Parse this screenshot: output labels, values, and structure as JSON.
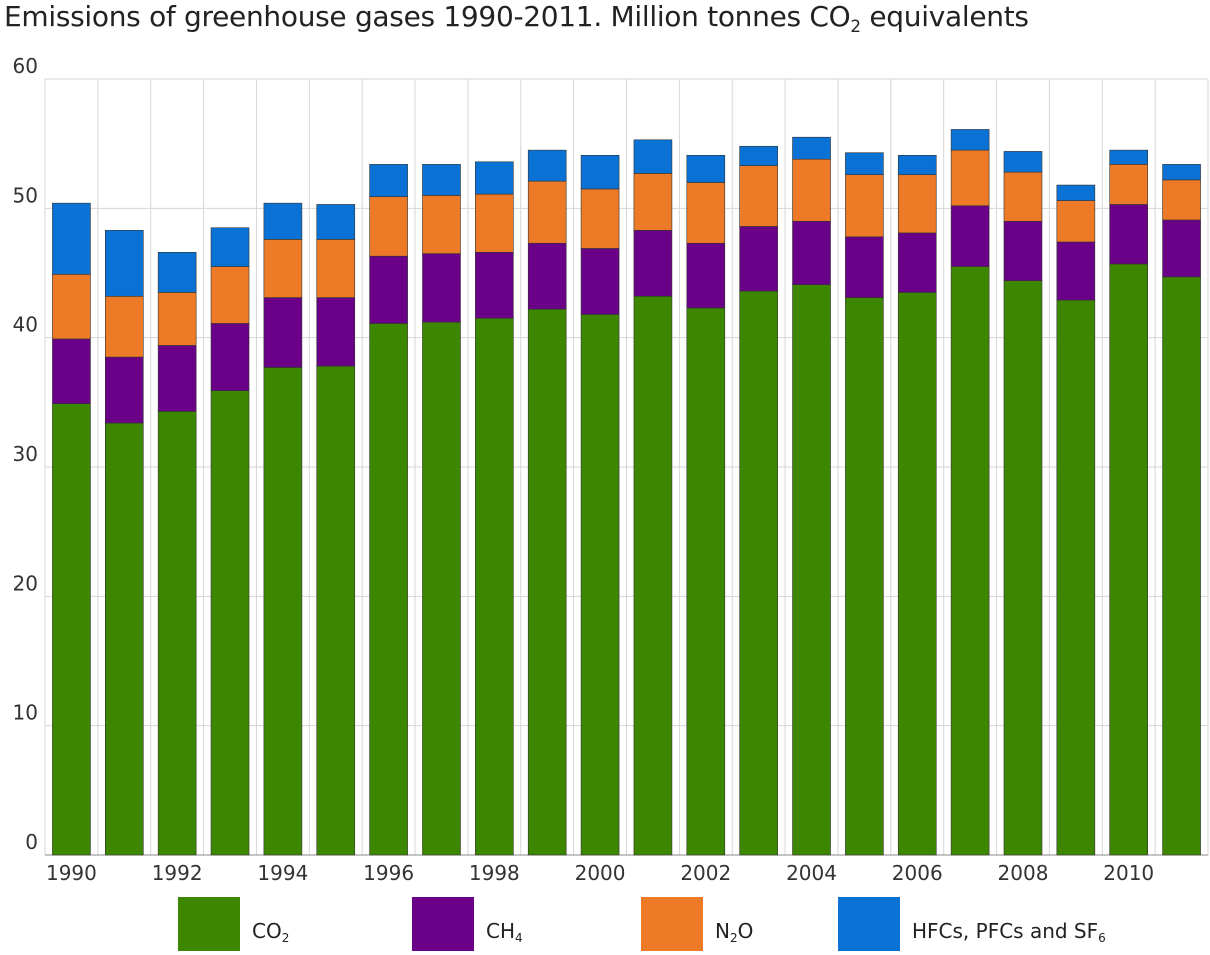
{
  "chart_data": {
    "type": "bar",
    "stacked": true,
    "title": {
      "main": "Emissions of greenhouse gases 1990-2011. Million tonnes CO",
      "sub": "2",
      "after": " equivalents"
    },
    "categories": [
      "1990",
      "1991",
      "1992",
      "1993",
      "1994",
      "1995",
      "1996",
      "1997",
      "1998",
      "1999",
      "2000",
      "2001",
      "2002",
      "2003",
      "2004",
      "2005",
      "2006",
      "2007",
      "2008",
      "2009",
      "2010",
      "2011"
    ],
    "x_tick_labels": [
      "1990",
      "1992",
      "1994",
      "1996",
      "1998",
      "2000",
      "2002",
      "2004",
      "2006",
      "2008",
      "2010"
    ],
    "ylim": [
      0,
      60
    ],
    "y_ticks": [
      0,
      10,
      20,
      30,
      40,
      50,
      60
    ],
    "grid": true,
    "legend_position": "bottom",
    "series": [
      {
        "name": "CO",
        "name_sub": "2",
        "color": "#3d8700",
        "values": [
          34.9,
          33.4,
          34.3,
          35.9,
          37.7,
          37.8,
          41.1,
          41.2,
          41.5,
          42.2,
          41.8,
          43.2,
          42.3,
          43.6,
          44.1,
          43.1,
          43.5,
          45.5,
          44.4,
          42.9,
          45.7,
          44.7
        ]
      },
      {
        "name": "CH",
        "name_sub": "4",
        "color": "#6a0088",
        "values": [
          5.0,
          5.1,
          5.1,
          5.2,
          5.4,
          5.3,
          5.2,
          5.3,
          5.1,
          5.1,
          5.1,
          5.1,
          5.0,
          5.0,
          4.9,
          4.7,
          4.6,
          4.7,
          4.6,
          4.5,
          4.6,
          4.4
        ]
      },
      {
        "name": "N",
        "name_sub": "2",
        "name_after": "O",
        "color": "#ec7a26",
        "values": [
          5.0,
          4.7,
          4.1,
          4.4,
          4.5,
          4.5,
          4.6,
          4.5,
          4.5,
          4.8,
          4.6,
          4.4,
          4.7,
          4.7,
          4.8,
          4.8,
          4.5,
          4.3,
          3.8,
          3.2,
          3.1,
          3.1
        ]
      },
      {
        "name": "HFCs, PFCs and SF",
        "name_sub": "6",
        "color": "#0a72d4",
        "values": [
          5.5,
          5.1,
          3.1,
          3.0,
          2.8,
          2.7,
          2.5,
          2.4,
          2.5,
          2.4,
          2.6,
          2.6,
          2.1,
          1.5,
          1.7,
          1.7,
          1.5,
          1.6,
          1.6,
          1.2,
          1.1,
          1.2
        ]
      }
    ]
  }
}
